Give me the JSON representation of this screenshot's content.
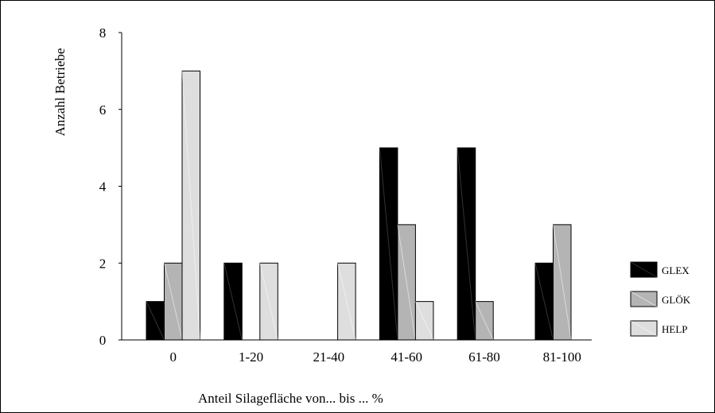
{
  "chart_data": {
    "type": "bar",
    "xlabel": "Anteil Silagefläche von... bis ... %",
    "ylabel": "Anzahl Betriebe",
    "ylim": [
      0,
      8
    ],
    "yticks": [
      "0",
      "2",
      "4",
      "6",
      "8"
    ],
    "categories": [
      "0",
      "1-20",
      "21-40",
      "41-60",
      "61-80",
      "81-100"
    ],
    "series": [
      {
        "name": "GLEX",
        "color": "#000000",
        "values": [
          1,
          2,
          0,
          5,
          5,
          2
        ]
      },
      {
        "name": "GLÖK",
        "color": "#b4b4b4",
        "values": [
          2,
          0,
          0,
          3,
          1,
          3
        ]
      },
      {
        "name": "HELP",
        "color": "#dedede",
        "values": [
          7,
          2,
          2,
          1,
          0,
          0
        ]
      }
    ],
    "legend_position": "right"
  }
}
